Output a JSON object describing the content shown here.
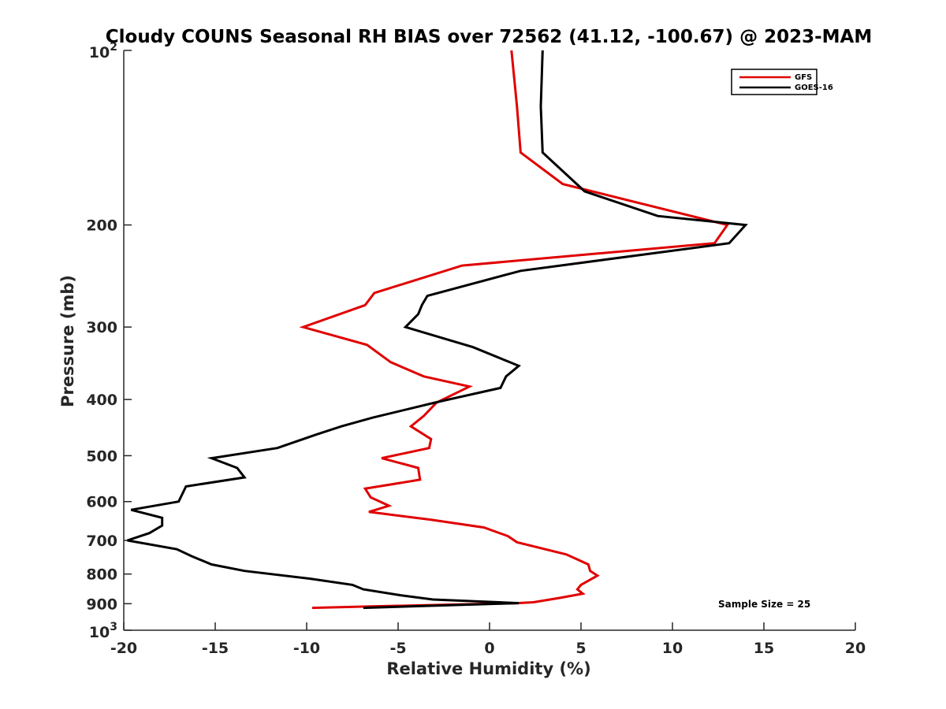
{
  "chart_data": {
    "type": "line",
    "title": "Cloudy COUNS Seasonal RH BIAS over 72562 (41.12, -100.67) @ 2023-MAM",
    "xlabel": "Relative Humidity (%)",
    "ylabel": "Pressure (mb)",
    "xlim": [
      -20,
      20
    ],
    "ylim": [
      100,
      1000
    ],
    "y_scale": "log",
    "y_reversed": true,
    "grid": false,
    "legend_position": "top-right",
    "x_ticks": [
      -20,
      -15,
      -10,
      -5,
      0,
      5,
      10,
      15,
      20
    ],
    "x_tick_labels": [
      "-20",
      "-15",
      "-10",
      "-5",
      "0",
      "5",
      "10",
      "15",
      "20"
    ],
    "y_ticks": [
      100,
      200,
      300,
      400,
      500,
      600,
      700,
      800,
      900,
      1000
    ],
    "y_tick_labels": [
      {
        "base": "10",
        "exp": "2"
      },
      {
        "base": "200",
        "exp": ""
      },
      {
        "base": "300",
        "exp": ""
      },
      {
        "base": "400",
        "exp": ""
      },
      {
        "base": "500",
        "exp": ""
      },
      {
        "base": "600",
        "exp": ""
      },
      {
        "base": "700",
        "exp": ""
      },
      {
        "base": "800",
        "exp": ""
      },
      {
        "base": "900",
        "exp": ""
      },
      {
        "base": "10",
        "exp": "3"
      }
    ],
    "series": [
      {
        "name": "GFS",
        "color": "#e00000",
        "points": [
          [
            1.2,
            100
          ],
          [
            1.5,
            125
          ],
          [
            1.7,
            150
          ],
          [
            4.0,
            170
          ],
          [
            13.0,
            200
          ],
          [
            12.3,
            215
          ],
          [
            -1.5,
            235
          ],
          [
            -6.3,
            262
          ],
          [
            -6.8,
            275
          ],
          [
            -10.2,
            300
          ],
          [
            -6.7,
            322
          ],
          [
            -5.4,
            345
          ],
          [
            -3.6,
            365
          ],
          [
            -1.1,
            380
          ],
          [
            -2.9,
            405
          ],
          [
            -3.6,
            427
          ],
          [
            -4.3,
            445
          ],
          [
            -3.2,
            468
          ],
          [
            -3.3,
            485
          ],
          [
            -5.9,
            505
          ],
          [
            -3.9,
            525
          ],
          [
            -3.8,
            550
          ],
          [
            -6.8,
            570
          ],
          [
            -6.5,
            590
          ],
          [
            -5.5,
            610
          ],
          [
            -6.6,
            625
          ],
          [
            -3.2,
            645
          ],
          [
            -0.3,
            665
          ],
          [
            1.0,
            688
          ],
          [
            1.5,
            705
          ],
          [
            4.2,
            740
          ],
          [
            5.4,
            770
          ],
          [
            5.5,
            790
          ],
          [
            5.9,
            805
          ],
          [
            5.0,
            835
          ],
          [
            4.8,
            850
          ],
          [
            5.1,
            865
          ],
          [
            3.8,
            880
          ],
          [
            2.4,
            895
          ],
          [
            1.5,
            898
          ],
          [
            -6.7,
            910
          ],
          [
            -9.7,
            915
          ]
        ]
      },
      {
        "name": "GOES-16",
        "color": "#000000",
        "points": [
          [
            2.9,
            100
          ],
          [
            2.8,
            125
          ],
          [
            2.9,
            150
          ],
          [
            5.2,
            175
          ],
          [
            9.2,
            193
          ],
          [
            14.0,
            200
          ],
          [
            13.1,
            215
          ],
          [
            1.7,
            240
          ],
          [
            -3.4,
            265
          ],
          [
            -3.7,
            275
          ],
          [
            -3.9,
            285
          ],
          [
            -4.6,
            300
          ],
          [
            -0.9,
            325
          ],
          [
            1.6,
            350
          ],
          [
            0.9,
            365
          ],
          [
            0.6,
            382
          ],
          [
            -3.0,
            405
          ],
          [
            -6.4,
            430
          ],
          [
            -8.1,
            445
          ],
          [
            -9.5,
            460
          ],
          [
            -11.6,
            485
          ],
          [
            -15.2,
            505
          ],
          [
            -13.8,
            525
          ],
          [
            -13.4,
            545
          ],
          [
            -16.6,
            565
          ],
          [
            -17.0,
            600
          ],
          [
            -19.6,
            620
          ],
          [
            -17.9,
            640
          ],
          [
            -17.9,
            660
          ],
          [
            -18.6,
            680
          ],
          [
            -19.8,
            700
          ],
          [
            -17.1,
            725
          ],
          [
            -16.3,
            745
          ],
          [
            -15.2,
            770
          ],
          [
            -13.4,
            790
          ],
          [
            -9.8,
            815
          ],
          [
            -7.5,
            835
          ],
          [
            -6.9,
            850
          ],
          [
            -4.9,
            870
          ],
          [
            -3.1,
            885
          ],
          [
            1.6,
            898
          ],
          [
            -6.9,
            915
          ]
        ]
      }
    ],
    "annotations": [
      "Sample Size = 25"
    ]
  }
}
